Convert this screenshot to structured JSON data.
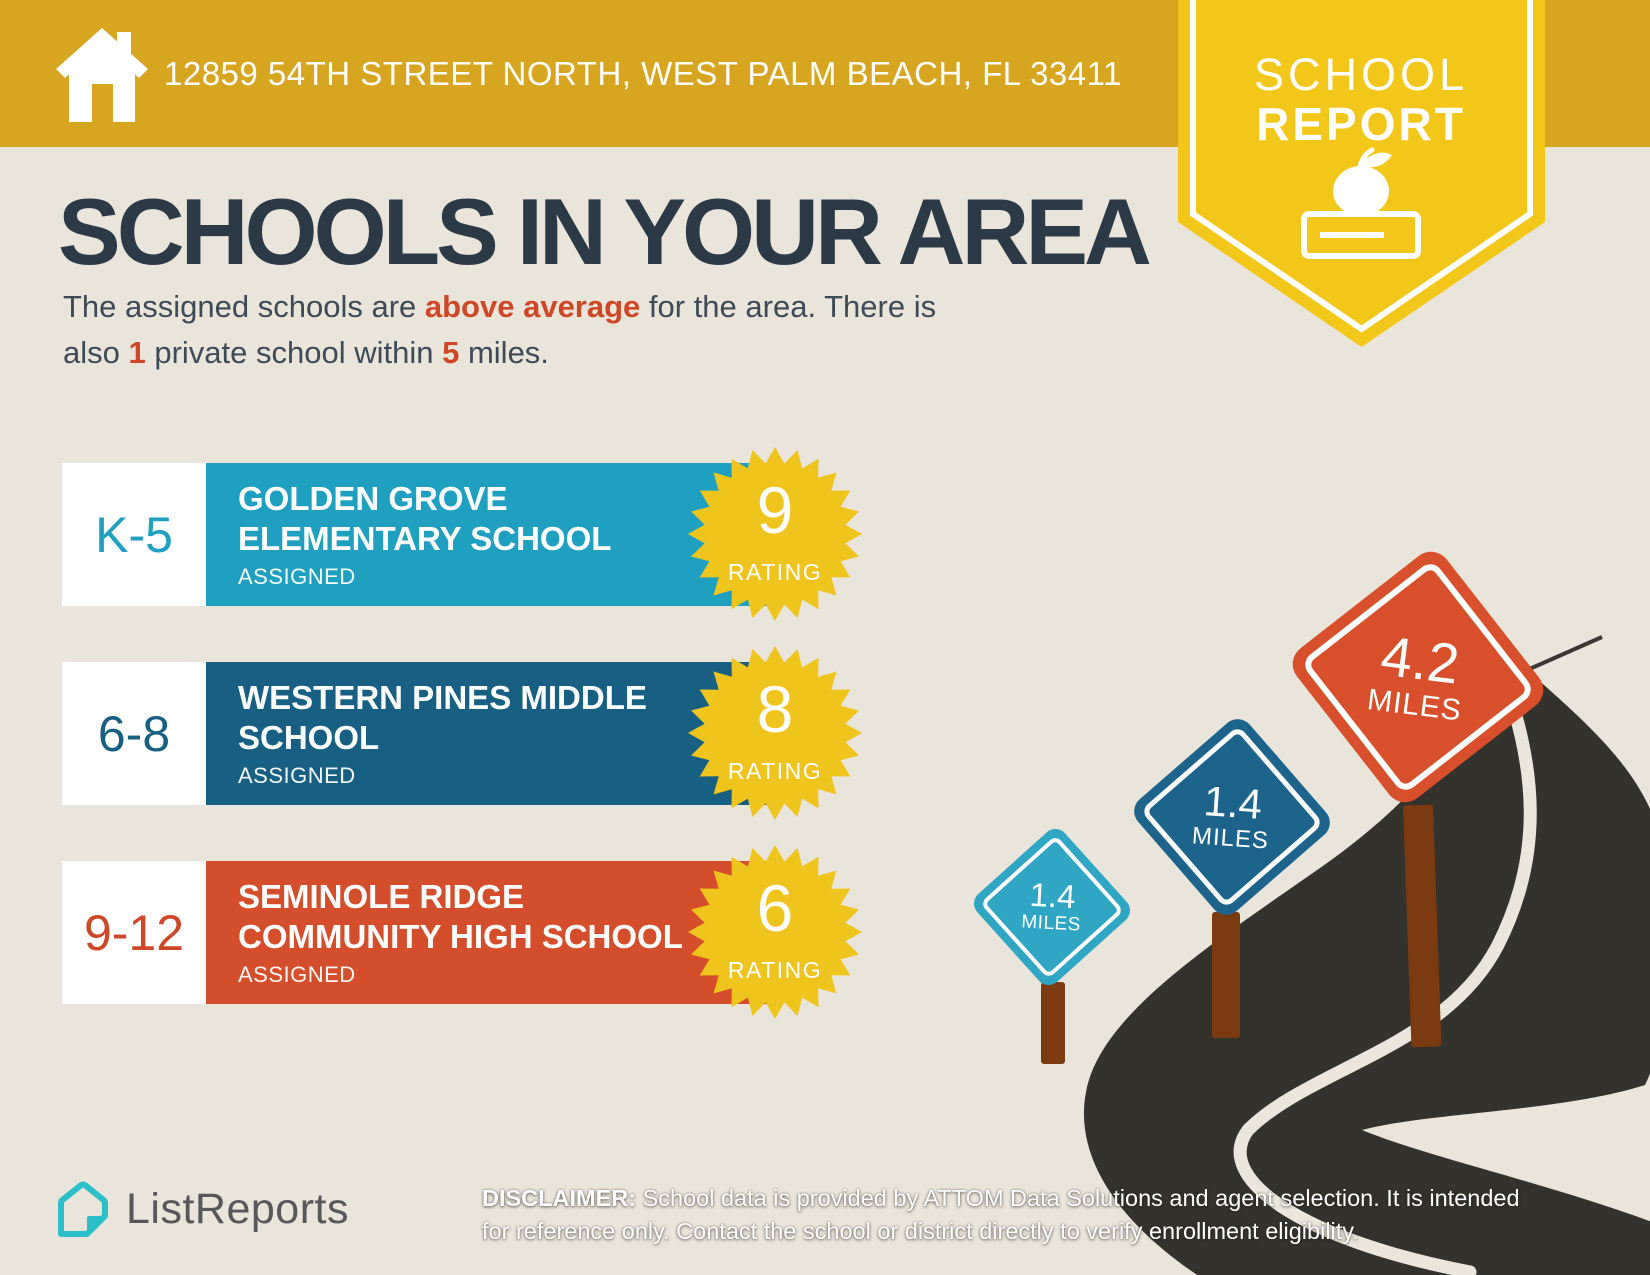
{
  "header": {
    "address": "12859 54TH STREET NORTH, WEST PALM BEACH, FL 33411",
    "badge_line1": "SCHOOL",
    "badge_line2": "REPORT"
  },
  "title": "SCHOOLS IN YOUR AREA",
  "subtitle": {
    "p1": "The assigned schools are ",
    "p2": "above average",
    "p3": " for the area. There is",
    "p4": "also ",
    "p5": "1",
    "p6": " private school within ",
    "p7": "5",
    "p8": " miles."
  },
  "schools": [
    {
      "grades": "K-5",
      "name": "GOLDEN GROVE ELEMENTARY SCHOOL",
      "status": "ASSIGNED",
      "rating": "9",
      "rating_label": "RATING",
      "color": "#1FA0C0"
    },
    {
      "grades": "6-8",
      "name": "WESTERN PINES MIDDLE SCHOOL",
      "status": "ASSIGNED",
      "rating": "8",
      "rating_label": "RATING",
      "color": "#186083"
    },
    {
      "grades": "9-12",
      "name": "SEMINOLE RIDGE COMMUNITY HIGH SCHOOL",
      "status": "ASSIGNED",
      "rating": "6",
      "rating_label": "RATING",
      "color": "#D54E2B"
    }
  ],
  "signs": [
    {
      "distance": "1.4",
      "unit": "MILES",
      "color": "#2FA6C4"
    },
    {
      "distance": "1.4",
      "unit": "MILES",
      "color": "#1C648C"
    },
    {
      "distance": "4.2",
      "unit": "MILES",
      "color": "#D8502B"
    }
  ],
  "footer": {
    "logo_text": "ListReports",
    "disclaimer_bold": "DISCLAIMER:",
    "disclaimer_line1": " School data is provided by ATTOM Data Solutions and agent selection. It is intended",
    "disclaimer_line2": "for reference only. Contact the school or district directly to verify enrollment eligibility."
  },
  "colors": {
    "banner_gold": "#D7A51F",
    "badge_yellow": "#F3C71A",
    "burst_yellow": "#EFC51D",
    "background": "#EAE5DA",
    "heading_navy": "#2C3A48",
    "body_text": "#3E4A56",
    "accent_red": "#CF4727",
    "road_dark": "#34322D",
    "post_brown": "#7B3A10",
    "logo_teal": "#2BC0C9"
  }
}
